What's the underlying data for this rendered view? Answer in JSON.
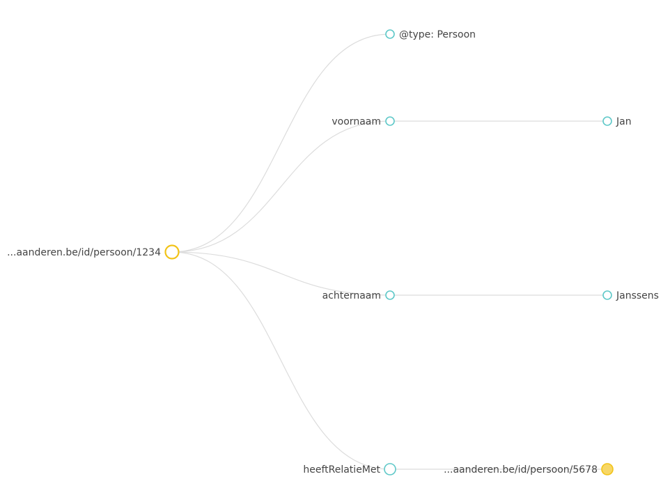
{
  "colors": {
    "link": "#dcdcdc",
    "root_stroke": "#f2c318",
    "property_stroke": "#5ec8c8",
    "resource_fill": "#f7d766",
    "resource_stroke": "#f2c318",
    "label": "#444444"
  },
  "tree": {
    "root": {
      "label": "...aanderen.be/id/persoon/1234",
      "kind": "resource",
      "children": [
        {
          "label": "@type: Persoon",
          "kind": "type",
          "children": []
        },
        {
          "label": "voornaam",
          "kind": "property",
          "children": [
            {
              "label": "Jan",
              "kind": "literal"
            }
          ]
        },
        {
          "label": "achternaam",
          "kind": "property",
          "children": [
            {
              "label": "Janssens",
              "kind": "literal"
            }
          ]
        },
        {
          "label": "heeftRelatieMet",
          "kind": "property",
          "children": [
            {
              "label": "...aanderen.be/id/persoon/5678",
              "kind": "linked-resource"
            }
          ]
        }
      ]
    }
  }
}
